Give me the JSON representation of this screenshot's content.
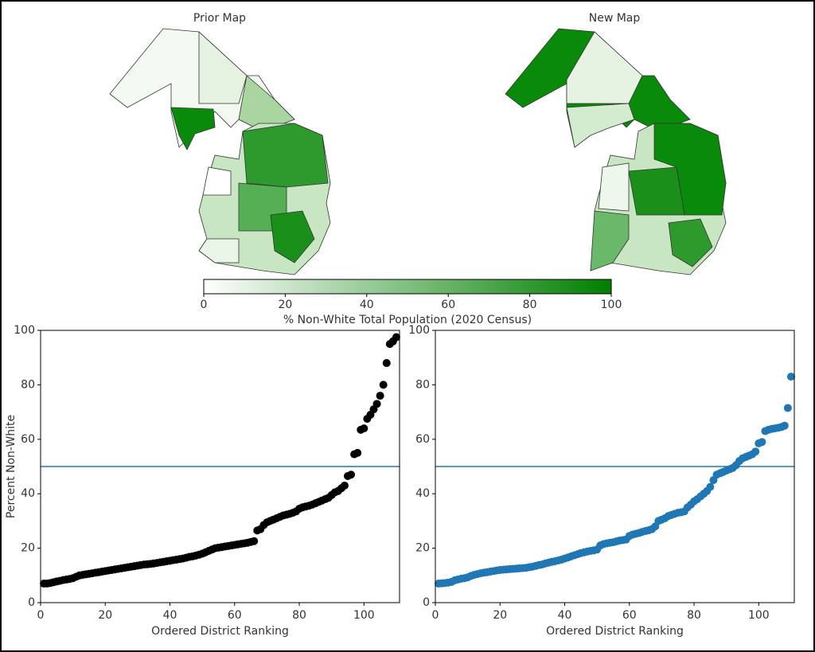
{
  "chart_data": [
    {
      "type": "map",
      "title": "Prior Map"
    },
    {
      "type": "map",
      "title": "New Map"
    },
    {
      "type": "colorbar",
      "label": "% Non-White Total Population (2020 Census)",
      "lim": [
        0,
        100
      ],
      "ticks": [
        0,
        20,
        40,
        60,
        80,
        100
      ],
      "colors": [
        "#ffffff",
        "#007f00"
      ]
    },
    {
      "type": "scatter",
      "xlabel": "Ordered District Ranking",
      "ylabel": "Percent Non-White",
      "color": "#000000",
      "hline": 50,
      "hline_color": "#1f77b4",
      "xlim": [
        0,
        111
      ],
      "ylim": [
        0,
        100
      ],
      "xticks": [
        0,
        20,
        40,
        60,
        80,
        100
      ],
      "yticks": [
        0,
        20,
        40,
        60,
        80,
        100
      ],
      "x": [
        1,
        2,
        3,
        4,
        5,
        6,
        7,
        8,
        9,
        10,
        11,
        12,
        13,
        14,
        15,
        16,
        17,
        18,
        19,
        20,
        21,
        22,
        23,
        24,
        25,
        26,
        27,
        28,
        29,
        30,
        31,
        32,
        33,
        34,
        35,
        36,
        37,
        38,
        39,
        40,
        41,
        42,
        43,
        44,
        45,
        46,
        47,
        48,
        49,
        50,
        51,
        52,
        53,
        54,
        55,
        56,
        57,
        58,
        59,
        60,
        61,
        62,
        63,
        64,
        65,
        66,
        67,
        68,
        69,
        70,
        71,
        72,
        73,
        74,
        75,
        76,
        77,
        78,
        79,
        80,
        81,
        82,
        83,
        84,
        85,
        86,
        87,
        88,
        89,
        90,
        91,
        92,
        93,
        94,
        95,
        96,
        97,
        98,
        99,
        100,
        101,
        102,
        103,
        104,
        105,
        106,
        107,
        108,
        109,
        110
      ],
      "values": [
        7,
        7,
        7.2,
        7.5,
        7.8,
        8,
        8.3,
        8.5,
        8.7,
        9,
        9.5,
        10,
        10.2,
        10.4,
        10.6,
        10.8,
        11,
        11.2,
        11.4,
        11.6,
        11.8,
        12,
        12.2,
        12.4,
        12.6,
        12.8,
        13,
        13.2,
        13.4,
        13.6,
        13.8,
        14,
        14.1,
        14.2,
        14.4,
        14.6,
        14.8,
        15,
        15.2,
        15.4,
        15.6,
        15.8,
        16,
        16.2,
        16.5,
        16.8,
        17,
        17.3,
        17.6,
        18,
        18.5,
        19,
        19.5,
        20,
        20.2,
        20.4,
        20.6,
        20.8,
        21,
        21.2,
        21.4,
        21.6,
        21.8,
        22,
        22.3,
        22.6,
        26.5,
        27,
        28.5,
        29.5,
        30,
        30.5,
        31,
        31.5,
        32,
        32.3,
        32.6,
        33,
        33.5,
        34.5,
        35,
        35.3,
        35.6,
        36,
        36.5,
        37,
        37.5,
        38,
        38.5,
        39.5,
        40.5,
        41,
        42,
        43,
        46.5,
        47,
        54.5,
        55,
        63.5,
        64,
        67.5,
        69,
        71,
        73,
        76,
        80,
        88,
        95,
        96,
        97.5
      ]
    },
    {
      "type": "scatter",
      "xlabel": "Ordered District Ranking",
      "color": "#1f77b4",
      "hline": 50,
      "hline_color": "#1f77b4",
      "xlim": [
        0,
        111
      ],
      "ylim": [
        0,
        100
      ],
      "xticks": [
        0,
        20,
        40,
        60,
        80,
        100
      ],
      "yticks": [
        0,
        20,
        40,
        60,
        80,
        100
      ],
      "x": [
        1,
        2,
        3,
        4,
        5,
        6,
        7,
        8,
        9,
        10,
        11,
        12,
        13,
        14,
        15,
        16,
        17,
        18,
        19,
        20,
        21,
        22,
        23,
        24,
        25,
        26,
        27,
        28,
        29,
        30,
        31,
        32,
        33,
        34,
        35,
        36,
        37,
        38,
        39,
        40,
        41,
        42,
        43,
        44,
        45,
        46,
        47,
        48,
        49,
        50,
        51,
        52,
        53,
        54,
        55,
        56,
        57,
        58,
        59,
        60,
        61,
        62,
        63,
        64,
        65,
        66,
        67,
        68,
        69,
        70,
        71,
        72,
        73,
        74,
        75,
        76,
        77,
        78,
        79,
        80,
        81,
        82,
        83,
        84,
        85,
        86,
        87,
        88,
        89,
        90,
        91,
        92,
        93,
        94,
        95,
        96,
        97,
        98,
        99,
        100,
        101,
        102,
        103,
        104,
        105,
        106,
        107,
        108,
        109,
        110
      ],
      "values": [
        7,
        7.1,
        7.2,
        7.4,
        7.6,
        8.2,
        8.5,
        8.8,
        9,
        9.3,
        9.8,
        10.2,
        10.5,
        10.8,
        11,
        11.2,
        11.4,
        11.6,
        11.8,
        12,
        12.1,
        12.2,
        12.3,
        12.4,
        12.5,
        12.6,
        12.7,
        12.8,
        13,
        13.2,
        13.5,
        13.8,
        14,
        14.4,
        14.7,
        15,
        15.2,
        15.5,
        15.8,
        16.2,
        16.6,
        17,
        17.4,
        17.8,
        18.2,
        18.5,
        18.8,
        19,
        19.2,
        19.5,
        21,
        21.5,
        21.8,
        22,
        22.2,
        22.5,
        22.8,
        23,
        23.2,
        24.5,
        25,
        25.3,
        25.6,
        26,
        26.3,
        26.6,
        27,
        28,
        30,
        30.5,
        31,
        31.8,
        32.2,
        32.6,
        33,
        33.2,
        33.5,
        35,
        36,
        37.2,
        38,
        39,
        40,
        41,
        42.5,
        45,
        47,
        47.5,
        48,
        48.5,
        49,
        49.5,
        50.5,
        52,
        53,
        53.5,
        54,
        54.5,
        55.5,
        58.5,
        59,
        63,
        63.5,
        63.8,
        64,
        64.2,
        64.5,
        65,
        71.5,
        83
      ]
    }
  ]
}
